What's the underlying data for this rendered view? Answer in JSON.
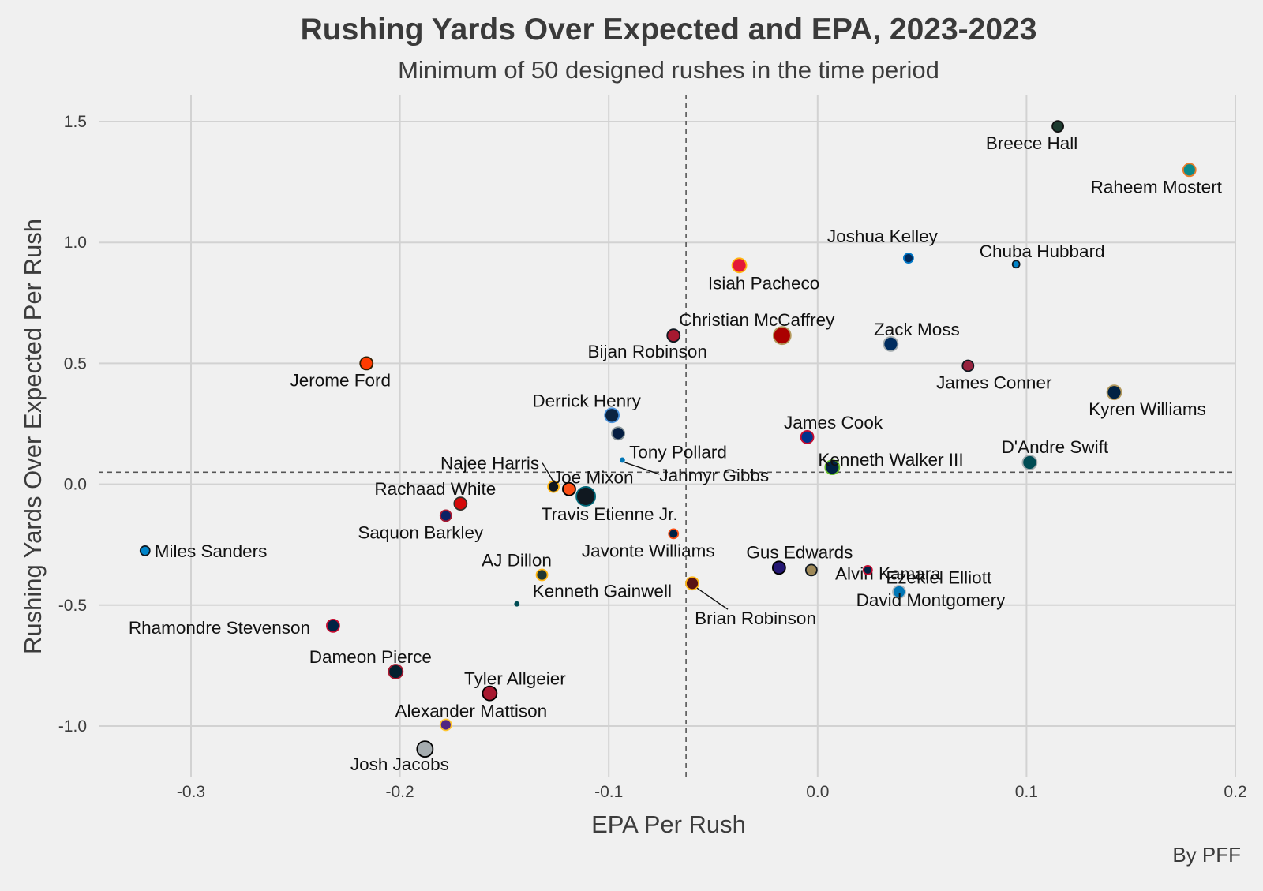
{
  "title": "Rushing Yards Over Expected and EPA, 2023-2023",
  "subtitle": "Minimum of 50 designed rushes in the time period",
  "caption": "By PFF",
  "chart_data": {
    "type": "scatter",
    "xlabel": "EPA Per Rush",
    "ylabel": "Rushing Yards Over Expected Per Rush",
    "xlim": [
      -0.35,
      0.2
    ],
    "ylim": [
      -1.2,
      1.6
    ],
    "x_ticks": [
      -0.3,
      -0.2,
      -0.1,
      0.0,
      0.1,
      0.2
    ],
    "x_tick_labels": [
      "-0.3",
      "-0.2",
      "-0.1",
      "0.0",
      "0.1",
      "0.2"
    ],
    "y_ticks": [
      -1.0,
      -0.5,
      0.0,
      0.5,
      1.0,
      1.5
    ],
    "y_tick_labels": [
      "-1.0",
      "-0.5",
      "0.0",
      "0.5",
      "1.0",
      "1.5"
    ],
    "grid": true,
    "reference_lines": {
      "x": -0.063,
      "y": 0.05,
      "style": "dashed"
    },
    "points": [
      {
        "name": "Breece Hall",
        "x": 0.115,
        "y": 1.48,
        "size": 7,
        "fill": "#1d3a2f",
        "stroke": "#111111"
      },
      {
        "name": "Raheem Mostert",
        "x": 0.178,
        "y": 1.3,
        "size": 8,
        "fill": "#0a8a8a",
        "stroke": "#e87d2c"
      },
      {
        "name": "Joshua Kelley",
        "x": 0.0435,
        "y": 0.935,
        "size": 6,
        "fill": "#002a5c",
        "stroke": "#0078c8"
      },
      {
        "name": "Isiah Pacheco",
        "x": -0.0375,
        "y": 0.905,
        "size": 9,
        "fill": "#e31837",
        "stroke": "#ffb612"
      },
      {
        "name": "Chuba Hubbard",
        "x": 0.095,
        "y": 0.91,
        "size": 4.5,
        "fill": "#0085ca",
        "stroke": "#101820"
      },
      {
        "name": "Christian McCaffrey",
        "x": -0.017,
        "y": 0.615,
        "size": 11,
        "fill": "#aa0000",
        "stroke": "#b3995d"
      },
      {
        "name": "Bijan Robinson",
        "x": -0.069,
        "y": 0.615,
        "size": 8,
        "fill": "#a71930",
        "stroke": "#101820"
      },
      {
        "name": "Zack Moss",
        "x": 0.035,
        "y": 0.58,
        "size": 9,
        "fill": "#002c5f",
        "stroke": "#a2aaad"
      },
      {
        "name": "James Conner",
        "x": 0.072,
        "y": 0.49,
        "size": 7,
        "fill": "#97233f",
        "stroke": "#101820"
      },
      {
        "name": "Jerome Ford",
        "x": -0.216,
        "y": 0.5,
        "size": 8,
        "fill": "#ff3c00",
        "stroke": "#311d00"
      },
      {
        "name": "Kyren Williams",
        "x": 0.142,
        "y": 0.38,
        "size": 9,
        "fill": "#002244",
        "stroke": "#b3995d"
      },
      {
        "name": "Derrick Henry",
        "x": -0.0985,
        "y": 0.285,
        "size": 9,
        "fill": "#0c2340",
        "stroke": "#4b92db"
      },
      {
        "name": "Tony Pollard",
        "x": -0.0955,
        "y": 0.21,
        "size": 8,
        "fill": "#041e42",
        "stroke": "#869397"
      },
      {
        "name": "James Cook",
        "x": -0.005,
        "y": 0.195,
        "size": 8,
        "fill": "#00338d",
        "stroke": "#c60c30"
      },
      {
        "name": "Kenneth Walker III",
        "x": 0.007,
        "y": 0.07,
        "size": 9,
        "fill": "#002244",
        "stroke": "#69be28"
      },
      {
        "name": "D'Andre Swift",
        "x": 0.1015,
        "y": 0.09,
        "size": 9,
        "fill": "#004c54",
        "stroke": "#a5acaf"
      },
      {
        "name": "Jahmyr Gibbs",
        "x": -0.0935,
        "y": 0.1,
        "size": 2.5,
        "fill": "#0076b6",
        "stroke": "#0076b6"
      },
      {
        "name": "Najee Harris",
        "x": -0.1265,
        "y": -0.01,
        "size": 7,
        "fill": "#101820",
        "stroke": "#ffb612"
      },
      {
        "name": "Joe Mixon",
        "x": -0.119,
        "y": -0.02,
        "size": 8,
        "fill": "#fb4f14",
        "stroke": "#000000"
      },
      {
        "name": "Travis Etienne Jr.",
        "x": -0.111,
        "y": -0.05,
        "size": 12,
        "fill": "#101820",
        "stroke": "#006778"
      },
      {
        "name": "Rachaad White",
        "x": -0.171,
        "y": -0.08,
        "size": 8,
        "fill": "#d50a0a",
        "stroke": "#34302b"
      },
      {
        "name": "Saquon Barkley",
        "x": -0.178,
        "y": -0.13,
        "size": 7,
        "fill": "#0b2265",
        "stroke": "#a71930"
      },
      {
        "name": "Miles Sanders",
        "x": -0.322,
        "y": -0.275,
        "size": 6,
        "fill": "#0085ca",
        "stroke": "#101820"
      },
      {
        "name": "Javonte Williams",
        "x": -0.069,
        "y": -0.205,
        "size": 6,
        "fill": "#002244",
        "stroke": "#fb4f14"
      },
      {
        "name": "AJ Dillon",
        "x": -0.132,
        "y": -0.375,
        "size": 7,
        "fill": "#203731",
        "stroke": "#ffb612"
      },
      {
        "name": "Gus Edwards",
        "x": -0.0185,
        "y": -0.345,
        "size": 8,
        "fill": "#241773",
        "stroke": "#000000"
      },
      {
        "name": "Alvin Kamara",
        "x": -0.003,
        "y": -0.355,
        "size": 7,
        "fill": "#9f8958",
        "stroke": "#101820"
      },
      {
        "name": "Ezekiel Elliott",
        "x": 0.024,
        "y": -0.355,
        "size": 5.5,
        "fill": "#002244",
        "stroke": "#c60c30"
      },
      {
        "name": "Brian Robinson",
        "x": -0.06,
        "y": -0.41,
        "size": 8,
        "fill": "#5a1414",
        "stroke": "#ffb612"
      },
      {
        "name": "David Montgomery",
        "x": 0.039,
        "y": -0.445,
        "size": 8,
        "fill": "#0076b6",
        "stroke": "#b0b7bc"
      },
      {
        "name": "Kenneth Gainwell",
        "x": -0.144,
        "y": -0.495,
        "size": 2.5,
        "fill": "#004c54",
        "stroke": "#004c54"
      },
      {
        "name": "Rhamondre Stevenson",
        "x": -0.232,
        "y": -0.585,
        "size": 8,
        "fill": "#002244",
        "stroke": "#c60c30"
      },
      {
        "name": "Dameon Pierce",
        "x": -0.202,
        "y": -0.775,
        "size": 9,
        "fill": "#03202f",
        "stroke": "#a71930"
      },
      {
        "name": "Tyler Allgeier",
        "x": -0.157,
        "y": -0.865,
        "size": 9,
        "fill": "#a71930",
        "stroke": "#000000"
      },
      {
        "name": "Alexander Mattison",
        "x": -0.178,
        "y": -0.995,
        "size": 7,
        "fill": "#4f2683",
        "stroke": "#ffc62f"
      },
      {
        "name": "Josh Jacobs",
        "x": -0.188,
        "y": -1.095,
        "size": 10,
        "fill": "#a5acaf",
        "stroke": "#000000"
      }
    ]
  }
}
